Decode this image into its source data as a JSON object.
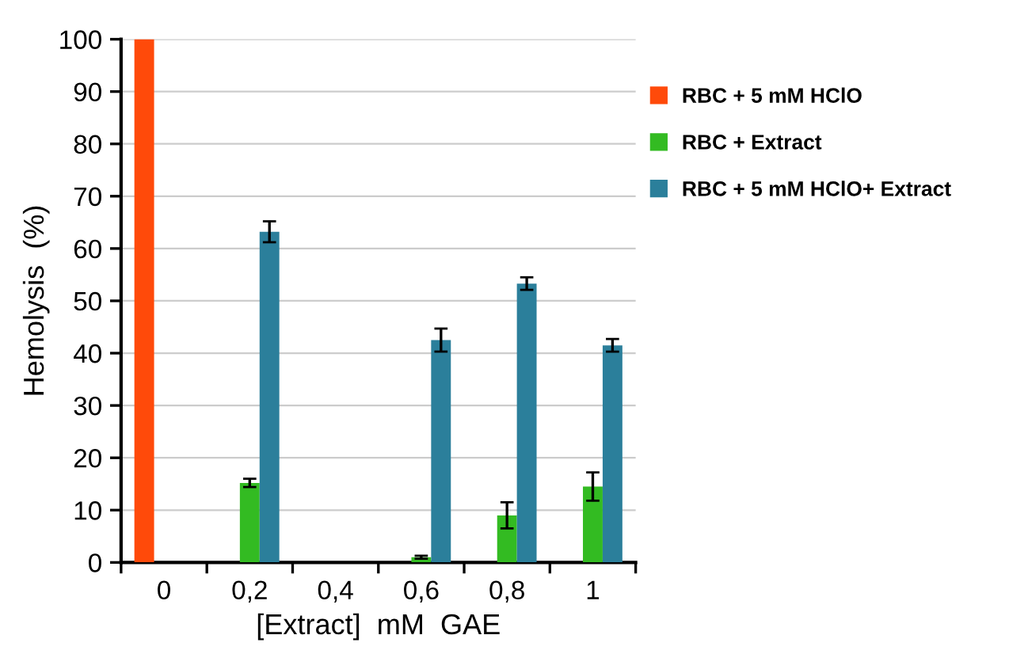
{
  "chart_data": {
    "type": "bar",
    "xlabel": "[Extract]  mM  GAE",
    "ylabel": "Hemolysis  (%)",
    "categories": [
      "0",
      "0,2",
      "0,4",
      "0,6",
      "0,8",
      "1"
    ],
    "series": [
      {
        "name": "RBC + 5 mM HClO",
        "color": "#ff4a0a",
        "values": [
          100,
          null,
          null,
          null,
          null,
          null
        ],
        "errors": [
          null,
          null,
          null,
          null,
          null,
          null
        ]
      },
      {
        "name": "RBC + Extract",
        "color": "#33bb22",
        "values": [
          null,
          15.2,
          null,
          1,
          9,
          14.5
        ],
        "errors": [
          null,
          0.8,
          null,
          0.3,
          2.5,
          2.7
        ]
      },
      {
        "name": "RBC + 5 mM HClO+ Extract",
        "color": "#2b7f9b",
        "values": [
          null,
          63.2,
          null,
          42.5,
          53.3,
          41.5
        ],
        "errors": [
          null,
          2,
          null,
          2.2,
          1.2,
          1.2
        ]
      }
    ],
    "ylim": [
      0,
      100
    ],
    "yticks": [
      0,
      10,
      20,
      30,
      40,
      50,
      60,
      70,
      80,
      90,
      100
    ],
    "grid": "y",
    "legend": "right"
  }
}
